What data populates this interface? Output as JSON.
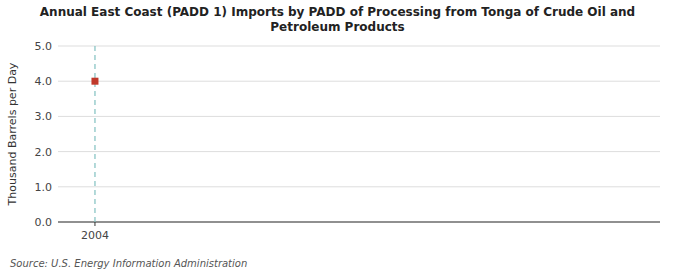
{
  "chart_data": {
    "type": "scatter",
    "title": "Annual East Coast (PADD 1) Imports by PADD of Processing from Tonga of Crude Oil and\nPetroleum Products",
    "ylabel": "Thousand Barrels per Day",
    "source": "Source: U.S. Energy Information Administration",
    "x": [
      2004
    ],
    "values": [
      4.0
    ],
    "color": "#c0392b",
    "marker": "square",
    "xlim": [
      2003.3,
      2014.7
    ],
    "ylim": [
      0.0,
      5.0
    ],
    "xticks": [
      2004
    ],
    "yticks": [
      {
        "value": 0.0,
        "label": "0.0"
      },
      {
        "value": 1.0,
        "label": "1.0"
      },
      {
        "value": 2.0,
        "label": "2.0"
      },
      {
        "value": 3.0,
        "label": "3.0"
      },
      {
        "value": 4.0,
        "label": "4.0"
      },
      {
        "value": 5.0,
        "label": "5.0"
      }
    ],
    "grid": true,
    "reference_lines": [
      {
        "x": 2004,
        "color": "#80c0c0",
        "line_style": "dashed"
      }
    ]
  }
}
